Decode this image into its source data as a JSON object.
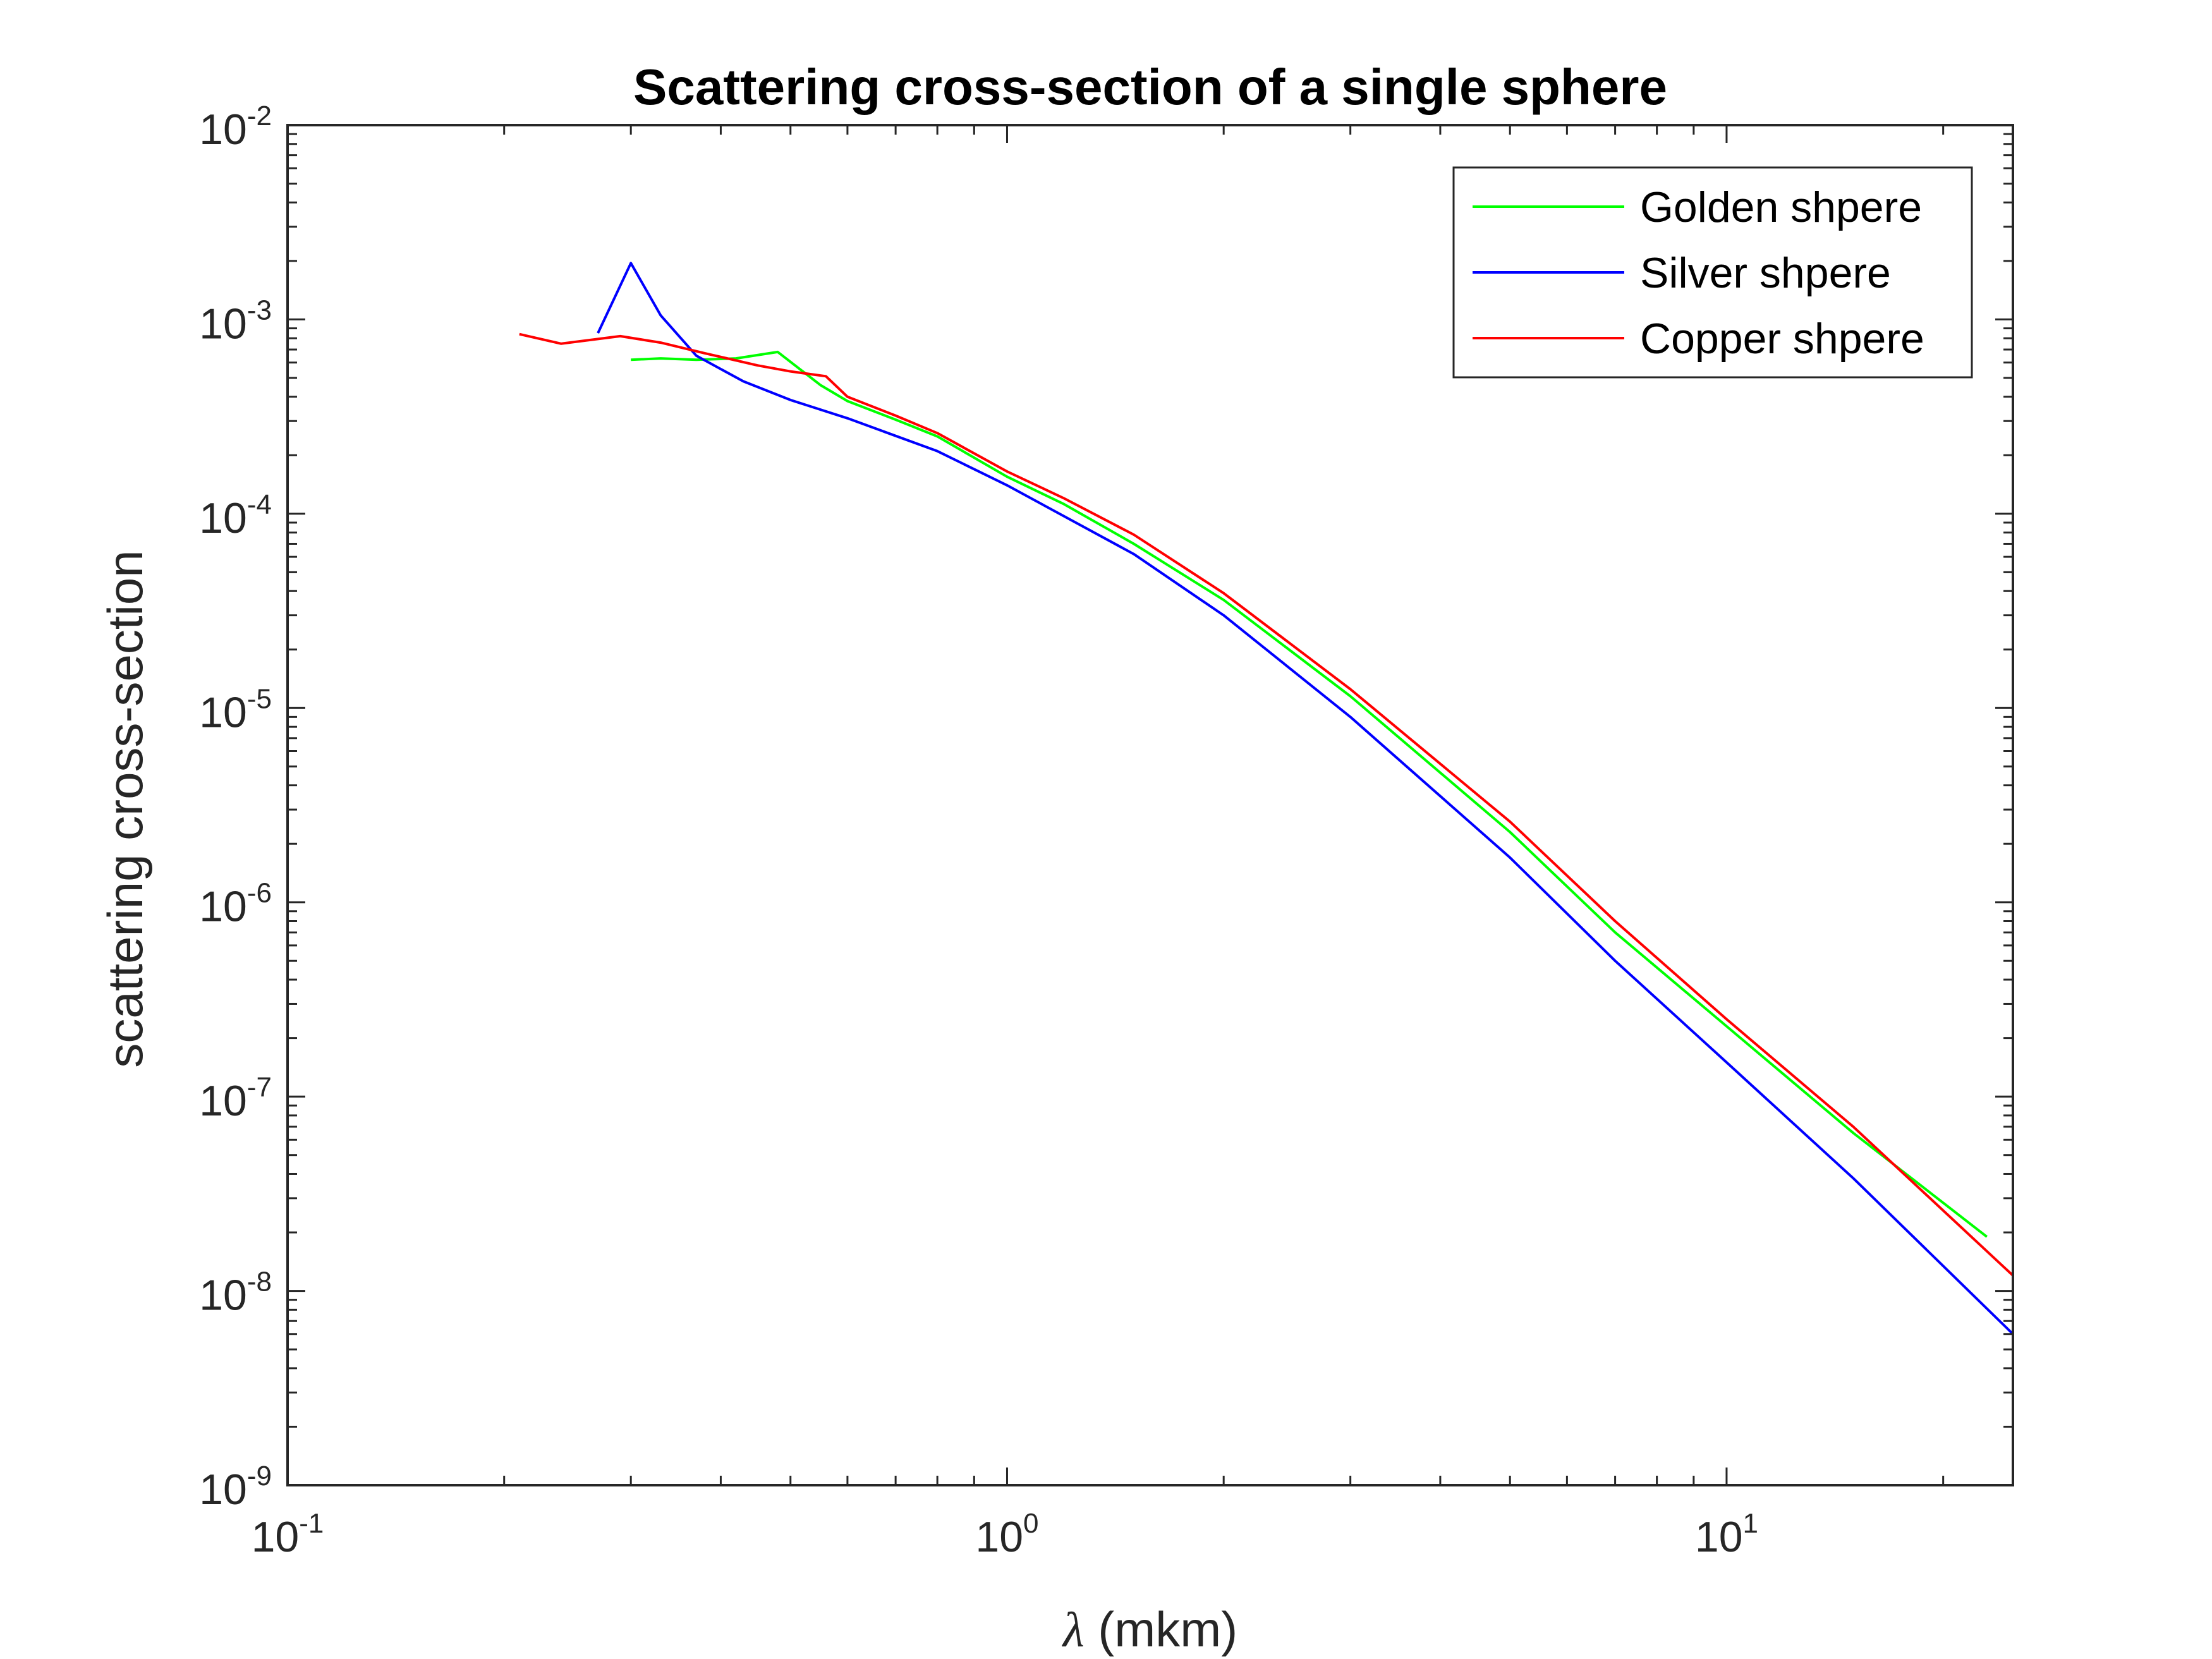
{
  "chart_data": {
    "type": "line",
    "title": "Scattering cross-section of a single sphere",
    "xlabel_symbol": "λ",
    "xlabel_unit": " (mkm)",
    "ylabel": "scattering cross-section",
    "x_scale": "log",
    "y_scale": "log",
    "xlim": [
      0.1,
      25
    ],
    "ylim": [
      1e-09,
      0.01
    ],
    "x_ticks": [
      {
        "value": 0.1,
        "base": "10",
        "exp": "-1"
      },
      {
        "value": 1,
        "base": "10",
        "exp": "0"
      },
      {
        "value": 10,
        "base": "10",
        "exp": "1"
      }
    ],
    "y_ticks": [
      {
        "value": 1e-09,
        "base": "10",
        "exp": "-9"
      },
      {
        "value": 1e-08,
        "base": "10",
        "exp": "-8"
      },
      {
        "value": 1e-07,
        "base": "10",
        "exp": "-7"
      },
      {
        "value": 1e-06,
        "base": "10",
        "exp": "-6"
      },
      {
        "value": 1e-05,
        "base": "10",
        "exp": "-5"
      },
      {
        "value": 0.0001,
        "base": "10",
        "exp": "-4"
      },
      {
        "value": 0.001,
        "base": "10",
        "exp": "-3"
      },
      {
        "value": 0.01,
        "base": "10",
        "exp": "-2"
      }
    ],
    "grid": false,
    "legend_position": "top-right",
    "series": [
      {
        "name": "Golden shpere",
        "color": "#00ff00",
        "points": [
          [
            0.3,
            0.00062
          ],
          [
            0.33,
            0.00063
          ],
          [
            0.37,
            0.00062
          ],
          [
            0.42,
            0.00063
          ],
          [
            0.48,
            0.00068
          ],
          [
            0.55,
            0.00046
          ],
          [
            0.6,
            0.00038
          ],
          [
            0.7,
            0.000305
          ],
          [
            0.8,
            0.00025
          ],
          [
            1.0,
            0.000155
          ],
          [
            1.2,
            0.000112
          ],
          [
            1.5,
            7e-05
          ],
          [
            2.0,
            3.6e-05
          ],
          [
            3.0,
            1.15e-05
          ],
          [
            5.0,
            2.3e-06
          ],
          [
            7.0,
            7e-07
          ],
          [
            10.0,
            2.3e-07
          ],
          [
            15.0,
            6.5e-08
          ],
          [
            23.0,
            1.9e-08
          ]
        ]
      },
      {
        "name": "Silver shpere",
        "color": "#0000ff",
        "points": [
          [
            0.27,
            0.00085
          ],
          [
            0.3,
            0.00195
          ],
          [
            0.33,
            0.00105
          ],
          [
            0.37,
            0.00065
          ],
          [
            0.43,
            0.00048
          ],
          [
            0.5,
            0.000385
          ],
          [
            0.6,
            0.00031
          ],
          [
            0.8,
            0.00021
          ],
          [
            1.0,
            0.00014
          ],
          [
            1.5,
            6.2e-05
          ],
          [
            2.0,
            3e-05
          ],
          [
            3.0,
            9e-06
          ],
          [
            5.0,
            1.7e-06
          ],
          [
            7.0,
            5e-07
          ],
          [
            10.0,
            1.5e-07
          ],
          [
            15.0,
            3.8e-08
          ],
          [
            25.0,
            6e-09
          ]
        ]
      },
      {
        "name": "Copper shpere",
        "color": "#ff0000",
        "points": [
          [
            0.21,
            0.00084
          ],
          [
            0.24,
            0.00075
          ],
          [
            0.29,
            0.00082
          ],
          [
            0.33,
            0.00076
          ],
          [
            0.38,
            0.00067
          ],
          [
            0.45,
            0.00058
          ],
          [
            0.5,
            0.00054
          ],
          [
            0.56,
            0.00051
          ],
          [
            0.6,
            0.0004
          ],
          [
            0.7,
            0.00032
          ],
          [
            0.8,
            0.00026
          ],
          [
            1.0,
            0.000165
          ],
          [
            1.2,
            0.00012
          ],
          [
            1.5,
            7.8e-05
          ],
          [
            2.0,
            3.9e-05
          ],
          [
            3.0,
            1.25e-05
          ],
          [
            5.0,
            2.6e-06
          ],
          [
            7.0,
            8e-07
          ],
          [
            10.0,
            2.5e-07
          ],
          [
            15.0,
            7e-08
          ],
          [
            25.0,
            1.2e-08
          ]
        ]
      }
    ]
  }
}
